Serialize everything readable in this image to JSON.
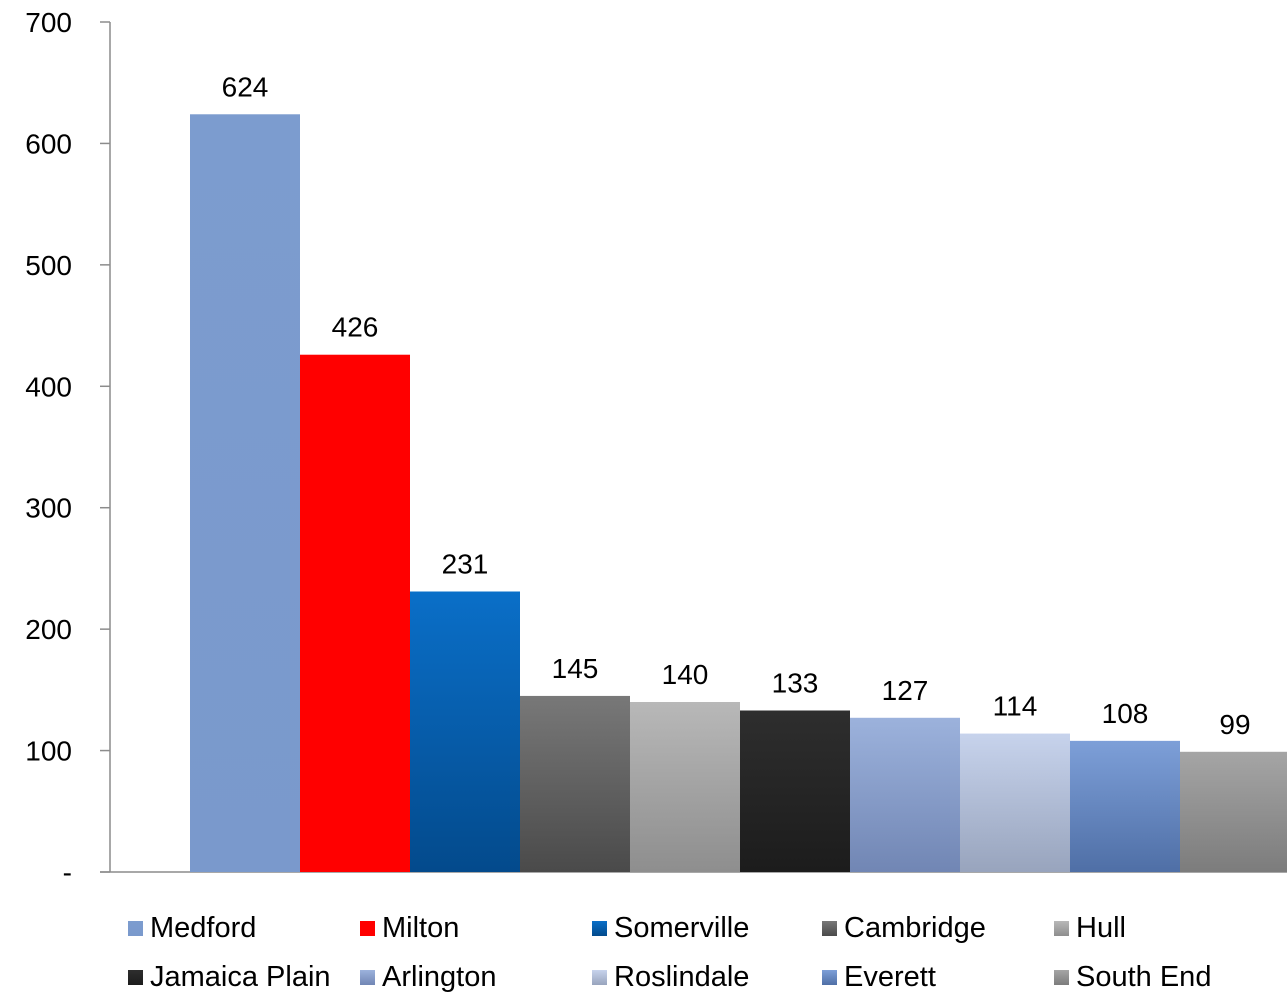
{
  "chart_data": {
    "type": "bar",
    "categories": [
      "Medford",
      "Milton",
      "Somerville",
      "Cambridge",
      "Hull",
      "Jamaica Plain",
      "Arlington",
      "Roslindale",
      "Everett",
      "South End"
    ],
    "values": [
      624,
      426,
      231,
      145,
      140,
      133,
      127,
      114,
      108,
      99
    ],
    "data_labels": [
      "624",
      "426",
      "231",
      "145",
      "140",
      "133",
      "127",
      "114",
      "108",
      "99"
    ],
    "colors": [
      [
        "#7c9ccf",
        "#7a99cc"
      ],
      [
        "#ff0000",
        "#ff0000"
      ],
      [
        "#0a6fc8",
        "#034a8c"
      ],
      [
        "#787878",
        "#4a4a4a"
      ],
      [
        "#b8b8b8",
        "#8e8e8e"
      ],
      [
        "#2e2e2e",
        "#1c1c1c"
      ],
      [
        "#9cb2dc",
        "#7186b4"
      ],
      [
        "#c7d3ec",
        "#98a4bd"
      ],
      [
        "#7d9fd8",
        "#4f6fa6"
      ],
      [
        "#a5a5a5",
        "#7c7c7c"
      ]
    ],
    "title": "",
    "xlabel": "",
    "ylabel": "",
    "ylim": [
      0,
      700
    ],
    "yticks": [
      0,
      100,
      200,
      300,
      400,
      500,
      600,
      700
    ],
    "ytick_labels": [
      "-",
      "100",
      "200",
      "300",
      "400",
      "500",
      "600",
      "700"
    ],
    "grid": false,
    "legend_position": "bottom"
  }
}
